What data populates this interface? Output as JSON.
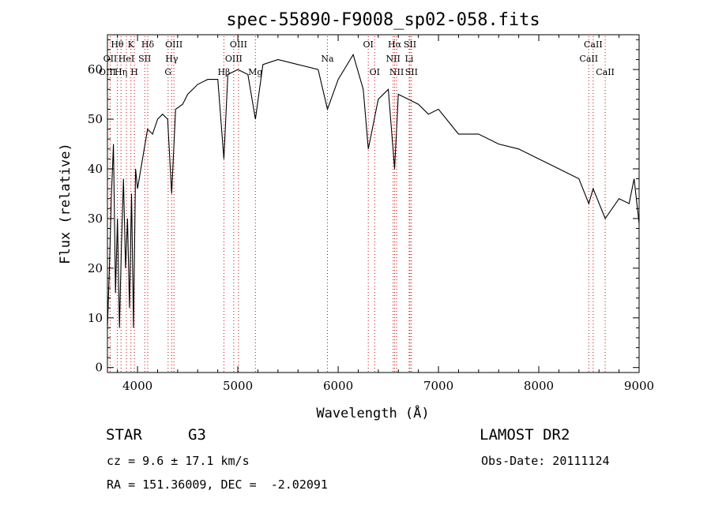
{
  "chart_data": {
    "type": "line",
    "title": "spec-55890-F9008_sp02-058.fits",
    "xlabel": "Wavelength (Å)",
    "ylabel": "Flux (relative)",
    "xlim": [
      3700,
      9000
    ],
    "ylim": [
      -1,
      67
    ],
    "x_ticks": [
      4000,
      5000,
      6000,
      7000,
      8000,
      9000
    ],
    "y_ticks": [
      0,
      10,
      20,
      30,
      40,
      50,
      60
    ],
    "grid": false,
    "line_color": "#000000",
    "marker_color": "#cc0000",
    "spectrum": {
      "x": [
        3700,
        3720,
        3740,
        3760,
        3780,
        3800,
        3820,
        3840,
        3860,
        3880,
        3900,
        3920,
        3940,
        3960,
        3980,
        4000,
        4050,
        4100,
        4150,
        4200,
        4250,
        4300,
        4340,
        4380,
        4450,
        4500,
        4600,
        4700,
        4800,
        4861,
        4900,
        5000,
        5100,
        5175,
        5250,
        5400,
        5600,
        5800,
        5893,
        6000,
        6150,
        6250,
        6300,
        6400,
        6500,
        6563,
        6600,
        6700,
        6800,
        6900,
        7000,
        7200,
        7400,
        7600,
        7800,
        8000,
        8200,
        8400,
        8498,
        8542,
        8662,
        8800,
        8900,
        8950,
        9000
      ],
      "y": [
        8,
        20,
        35,
        45,
        15,
        30,
        8,
        25,
        38,
        20,
        30,
        12,
        35,
        8,
        40,
        36,
        42,
        48,
        47,
        50,
        51,
        50,
        35,
        52,
        53,
        55,
        57,
        58,
        58,
        42,
        59,
        60,
        59,
        50,
        61,
        62,
        61,
        60,
        52,
        58,
        63,
        56,
        44,
        54,
        56,
        40,
        55,
        54,
        53,
        51,
        52,
        47,
        47,
        45,
        44,
        42,
        40,
        38,
        33,
        36,
        30,
        34,
        33,
        38,
        29
      ]
    },
    "lines": [
      {
        "label": "Hθ",
        "x": 3798,
        "row": 0
      },
      {
        "label": "OII",
        "x": 3727,
        "row": 1
      },
      {
        "label": "OIII",
        "x": 3700,
        "row": 2
      },
      {
        "label": "Hη",
        "x": 3835,
        "row": 2
      },
      {
        "label": "HeI",
        "x": 3889,
        "row": 1
      },
      {
        "label": "K",
        "x": 3934,
        "row": 0
      },
      {
        "label": "H",
        "x": 3968,
        "row": 2
      },
      {
        "label": "SII",
        "x": 4072,
        "row": 1
      },
      {
        "label": "Hδ",
        "x": 4102,
        "row": 0
      },
      {
        "label": "OIII",
        "x": 4363,
        "row": 0
      },
      {
        "label": "Hγ",
        "x": 4341,
        "row": 1
      },
      {
        "label": "G",
        "x": 4305,
        "row": 2
      },
      {
        "label": "OIII",
        "x": 5007,
        "row": 0
      },
      {
        "label": "OIII",
        "x": 4959,
        "row": 1
      },
      {
        "label": "Hβ",
        "x": 4861,
        "row": 2
      },
      {
        "label": "Mg",
        "x": 5175,
        "row": 2
      },
      {
        "label": "Na",
        "x": 5893,
        "row": 1
      },
      {
        "label": "OI",
        "x": 6300,
        "row": 0
      },
      {
        "label": "OI",
        "x": 6364,
        "row": 2
      },
      {
        "label": "Hα",
        "x": 6563,
        "row": 0
      },
      {
        "label": "SII",
        "x": 6716,
        "row": 0
      },
      {
        "label": "NII",
        "x": 6548,
        "row": 1
      },
      {
        "label": "Li",
        "x": 6708,
        "row": 1
      },
      {
        "label": "NII",
        "x": 6583,
        "row": 2
      },
      {
        "label": "SII",
        "x": 6731,
        "row": 2
      },
      {
        "label": "CaII",
        "x": 8542,
        "row": 0
      },
      {
        "label": "CaII",
        "x": 8498,
        "row": 1
      },
      {
        "label": "CaII",
        "x": 8662,
        "row": 2
      }
    ]
  },
  "info": {
    "object_class": "STAR",
    "subclass": "G3",
    "survey": "LAMOST DR2",
    "cz": "cz = 9.6 ± 17.1 km/s",
    "obs_date": "Obs-Date: 20111124",
    "coords": "RA = 151.36009, DEC =  -2.02091"
  }
}
